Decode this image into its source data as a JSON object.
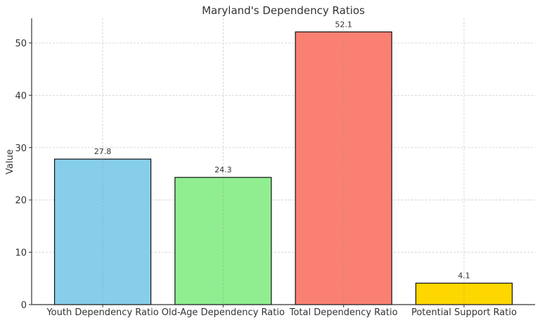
{
  "chart_data": {
    "type": "bar",
    "title": "Maryland's Dependency Ratios",
    "xlabel": "",
    "ylabel": "Value",
    "categories": [
      "Youth Dependency Ratio",
      "Old-Age Dependency Ratio",
      "Total Dependency Ratio",
      "Potential Support Ratio"
    ],
    "values": [
      27.8,
      24.3,
      52.1,
      4.1
    ],
    "data_labels": [
      "27.8",
      "24.3",
      "52.1",
      "4.1"
    ],
    "colors": [
      "#87ceeb",
      "#90ee90",
      "#fa8072",
      "#ffd700"
    ],
    "ylim": [
      0,
      54.7
    ],
    "yticks": [
      0,
      10,
      20,
      30,
      40,
      50
    ],
    "grid": true,
    "legend": "none"
  }
}
